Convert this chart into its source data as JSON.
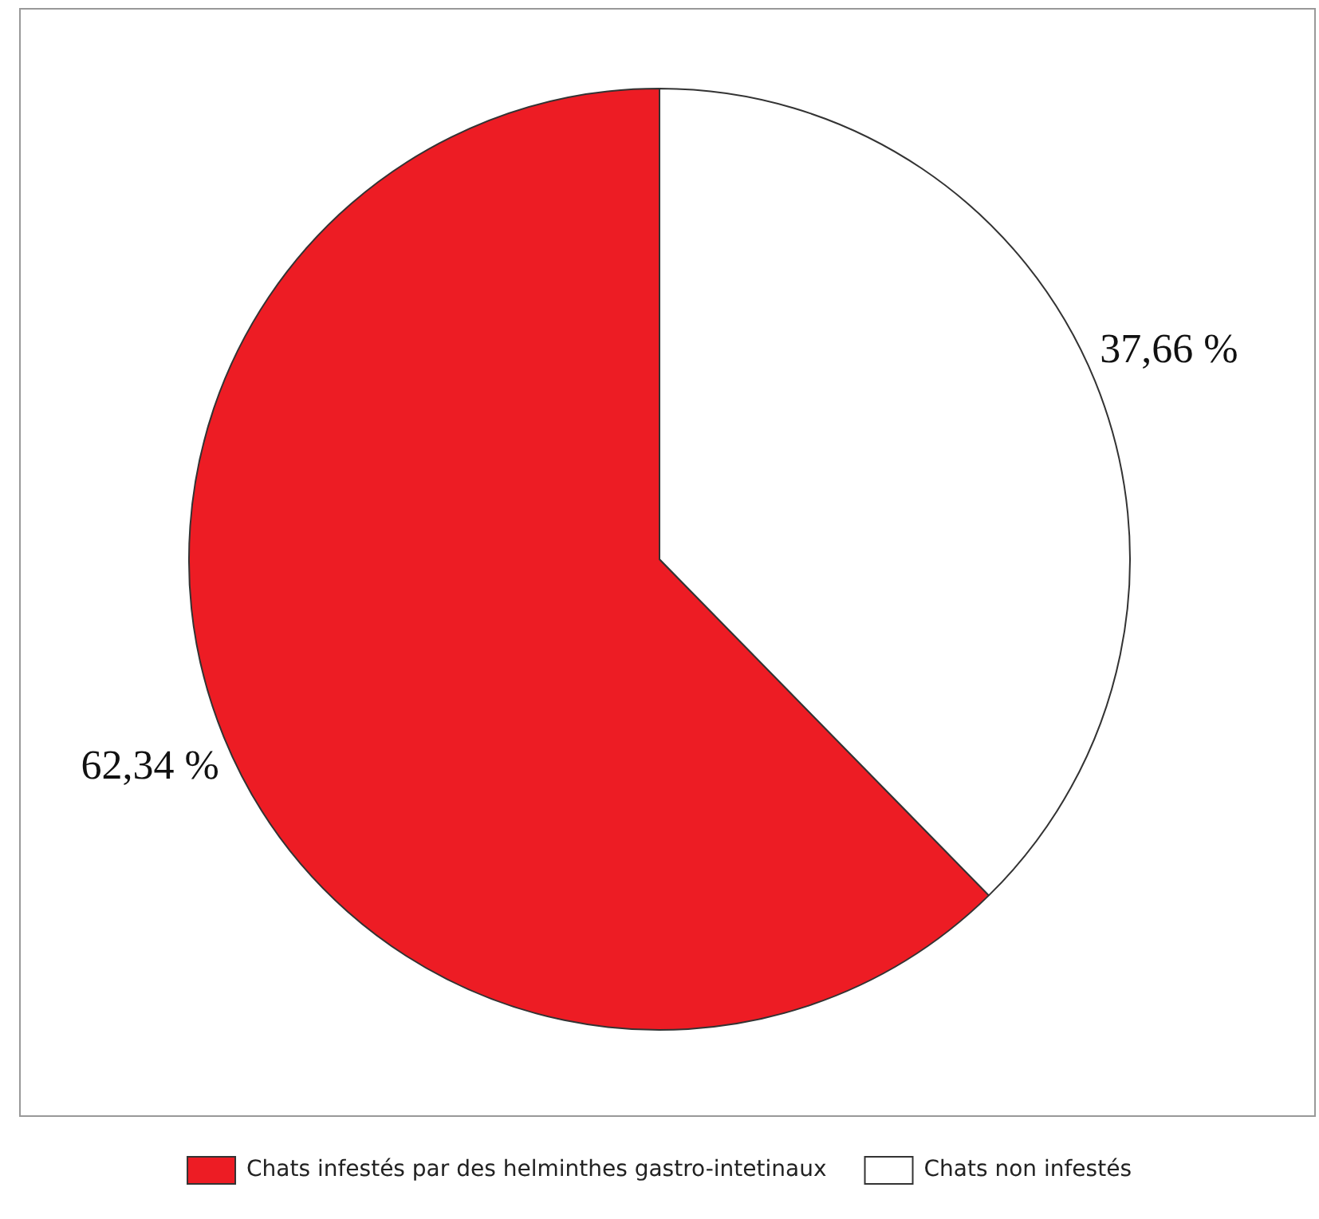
{
  "chart_data": {
    "type": "pie",
    "categories": [
      "Chats infestés par des helminthes gastro-intetinaux",
      "Chats non infestés"
    ],
    "values": [
      62.34,
      37.66
    ],
    "colors": [
      "#ed1c24",
      "#ffffff"
    ],
    "value_labels": [
      "62,34 %",
      "37,66 %"
    ],
    "legend": "bottom"
  }
}
